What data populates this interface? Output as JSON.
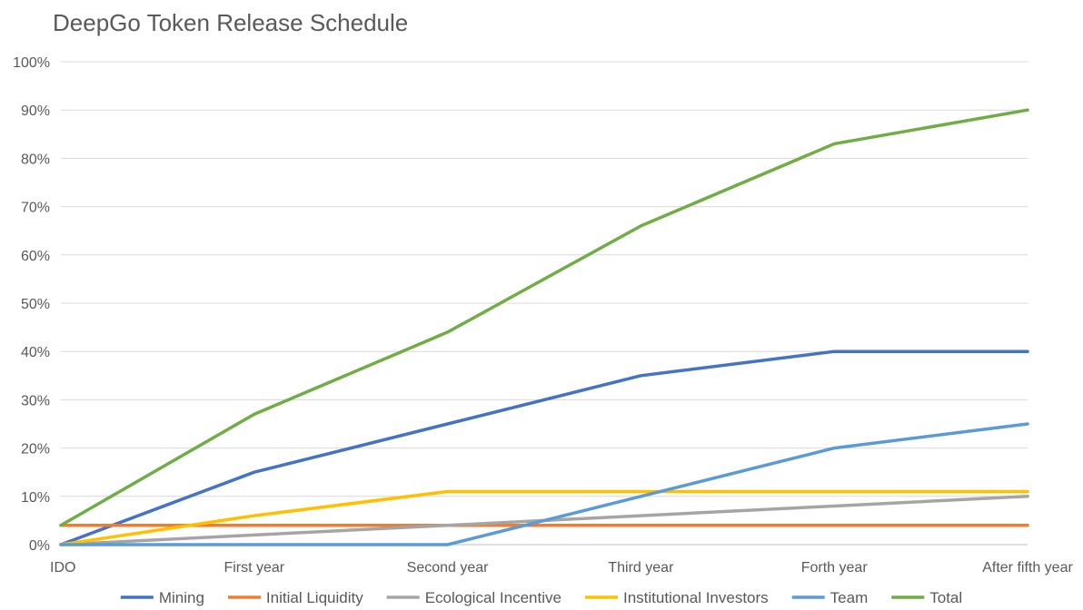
{
  "chart_data": {
    "type": "line",
    "title": "DeepGo Token Release Schedule",
    "categories": [
      "IDO",
      "First year",
      "Second year",
      "Third year",
      "Forth year",
      "After fifth year"
    ],
    "y_ticks": [
      "0%",
      "10%",
      "20%",
      "30%",
      "40%",
      "50%",
      "60%",
      "70%",
      "80%",
      "90%",
      "100%"
    ],
    "ylim": [
      0,
      100
    ],
    "grid": true,
    "legend_position": "bottom",
    "series": [
      {
        "name": "Mining",
        "color": "#4472C4",
        "values": [
          0,
          15,
          25,
          35,
          40,
          40
        ]
      },
      {
        "name": "Initial Liquidity",
        "color": "#ED7D31",
        "values": [
          4,
          4,
          4,
          4,
          4,
          4
        ]
      },
      {
        "name": "Ecological Incentive",
        "color": "#A5A5A5",
        "values": [
          0,
          2,
          4,
          6,
          8,
          10
        ]
      },
      {
        "name": "Institutional Investors",
        "color": "#FFC000",
        "values": [
          0,
          6,
          11,
          11,
          11,
          11
        ]
      },
      {
        "name": "Team",
        "color": "#5B9BD5",
        "values": [
          0,
          0,
          0,
          10,
          20,
          25
        ]
      },
      {
        "name": "Total",
        "color": "#70AD47",
        "values": [
          4,
          27,
          44,
          66,
          83,
          90
        ]
      }
    ]
  }
}
